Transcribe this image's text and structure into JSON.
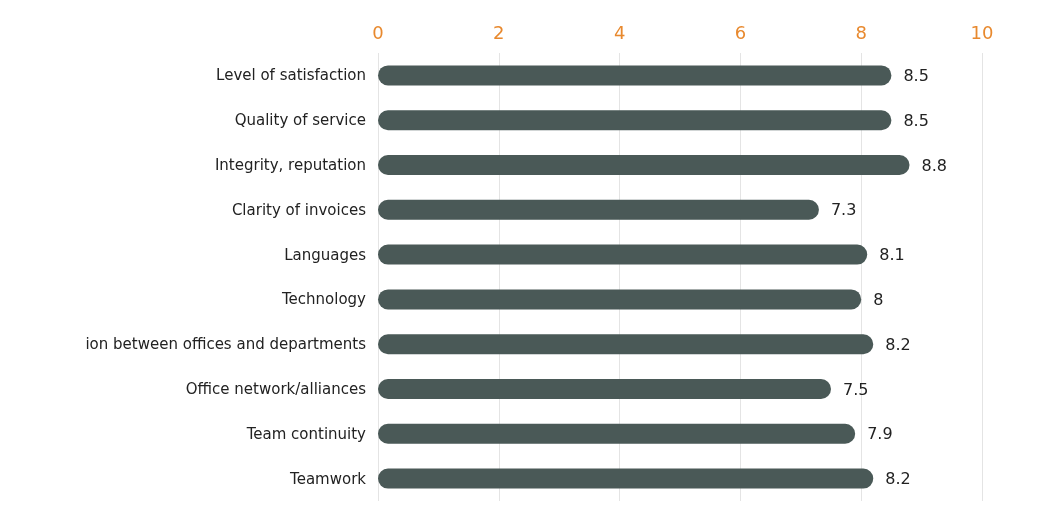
{
  "chart_data": {
    "type": "bar",
    "orientation": "horizontal",
    "categories": [
      "Level of satisfaction",
      "Quality of service",
      "Integrity, reputation",
      "Clarity of invoices",
      "Languages",
      "Technology",
      "ion between offices and departments",
      "Office network/alliances",
      "Team continuity",
      "Teamwork"
    ],
    "values": [
      8.5,
      8.5,
      8.8,
      7.3,
      8.1,
      8,
      8.2,
      7.5,
      7.9,
      8.2
    ],
    "color": "#4a5957",
    "xlim": [
      0,
      10
    ],
    "xticks": [
      0,
      2,
      4,
      6,
      8,
      10
    ],
    "grid": "x",
    "data_labels": true
  }
}
